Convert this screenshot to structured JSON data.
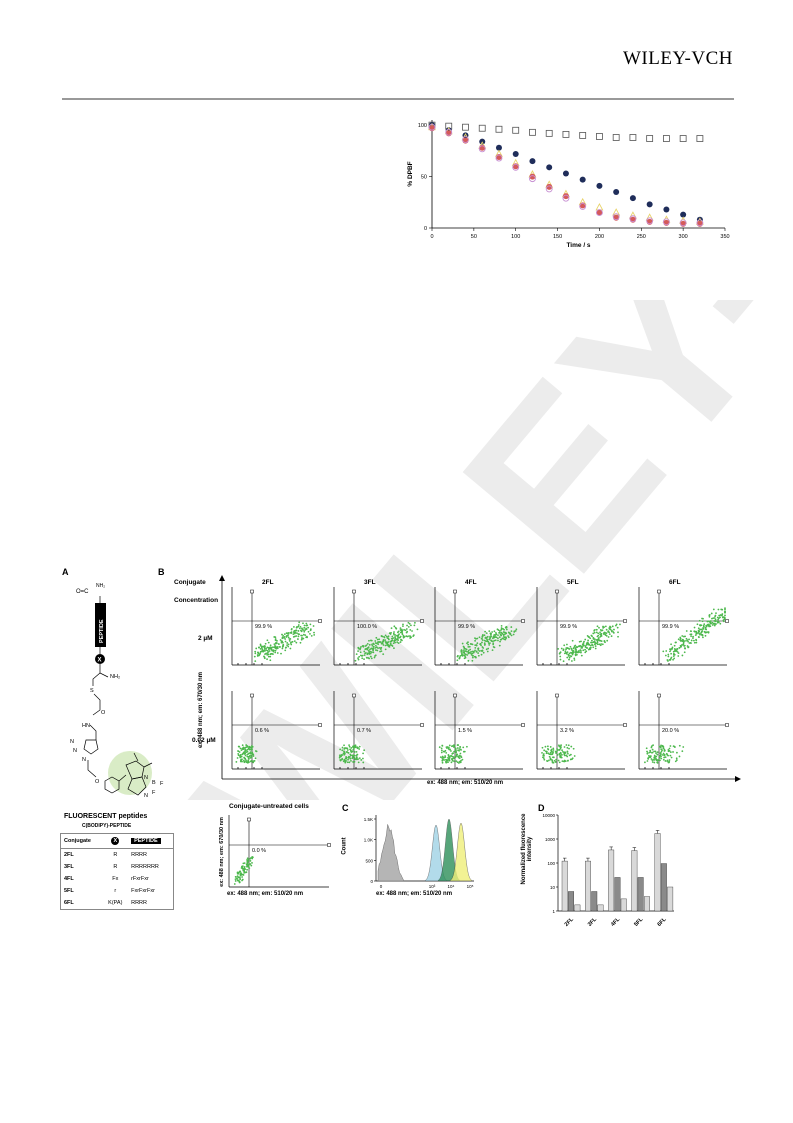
{
  "header": {
    "logo": "WILEY-VCH",
    "watermark": "WILEY-VCH"
  },
  "fig_top": {
    "chart_data": {
      "type": "scatter",
      "xlabel": "Time / s",
      "ylabel": "% DPBF",
      "xlim": [
        0,
        350
      ],
      "ylim": [
        0,
        105
      ],
      "xticks": [
        "0",
        "50",
        "100",
        "150",
        "200",
        "250",
        "300",
        "350"
      ],
      "yticks": [
        "0",
        "50",
        "100"
      ],
      "grid": false,
      "series": [
        {
          "color": "#555555",
          "marker": "open-square",
          "x": [
            0,
            20,
            40,
            60,
            80,
            100,
            120,
            140,
            160,
            180,
            200,
            220,
            240,
            260,
            280,
            300,
            320
          ],
          "y": [
            100,
            99,
            98,
            97,
            96,
            95,
            93,
            92,
            91,
            90,
            89,
            88,
            88,
            87,
            87,
            87,
            87
          ]
        },
        {
          "color": "#1f2d5a",
          "marker": "filled-circle",
          "x": [
            0,
            20,
            40,
            60,
            80,
            100,
            120,
            140,
            160,
            180,
            200,
            220,
            240,
            260,
            280,
            300,
            320
          ],
          "y": [
            100,
            95,
            90,
            84,
            78,
            72,
            65,
            59,
            53,
            47,
            41,
            35,
            29,
            23,
            18,
            13,
            8
          ]
        },
        {
          "color": "#e8d36a",
          "marker": "open-triangle",
          "x": [
            0,
            20,
            40,
            60,
            80,
            100,
            120,
            140,
            160,
            180,
            200,
            220,
            240,
            260,
            280,
            300,
            320
          ],
          "y": [
            98,
            94,
            88,
            80,
            72,
            63,
            52,
            42,
            33,
            25,
            20,
            15,
            12,
            10,
            8,
            7,
            6
          ]
        },
        {
          "color": "#d55a5a",
          "marker": "filled-circle",
          "x": [
            0,
            20,
            40,
            60,
            80,
            100,
            120,
            140,
            160,
            180,
            200,
            220,
            240,
            260,
            280,
            300,
            320
          ],
          "y": [
            97,
            92,
            85,
            78,
            69,
            60,
            50,
            40,
            31,
            22,
            15,
            10,
            8,
            6,
            5,
            4,
            4
          ]
        },
        {
          "color": "#c78fd2",
          "marker": "open-circle",
          "x": [
            0,
            20,
            40,
            60,
            80,
            100,
            120,
            140,
            160,
            180,
            200,
            220,
            240,
            260,
            280,
            300,
            320
          ],
          "y": [
            98,
            93,
            86,
            77,
            68,
            59,
            48,
            38,
            29,
            21,
            15,
            11,
            9,
            7,
            6,
            5,
            5
          ]
        }
      ]
    }
  },
  "figA": {
    "panel_label": "A",
    "structure_labels": [
      "O=C",
      "NH₂",
      "PEPTIDE",
      "X",
      "NH₂",
      "S",
      "O",
      "HN",
      "N",
      "N",
      "N",
      "O",
      "N",
      "B",
      "F",
      "F",
      "N"
    ],
    "title": "FLUORESCENT peptides",
    "subtitle": "C(BODIPY)-PEPTIDE",
    "table_head": [
      "Conjugate",
      "X",
      "PEPTIDE"
    ],
    "rows": [
      [
        "2FL",
        "R",
        "RRRR"
      ],
      [
        "3FL",
        "R",
        "RRRRRRR"
      ],
      [
        "4FL",
        "Fx",
        "rFxrFxr"
      ],
      [
        "5FL",
        "r",
        "FxrFxrFxr"
      ],
      [
        "6FL",
        "K(PA)",
        "RRRR"
      ]
    ]
  },
  "figB": {
    "panel_label": "B",
    "col_header": "Conjugate",
    "row_header": "Concentration",
    "columns": [
      "2FL",
      "3FL",
      "4FL",
      "5FL",
      "6FL"
    ],
    "rows": [
      "2 µM",
      "0.02 µM"
    ],
    "percent_top": [
      "99.9 %",
      "100.0 %",
      "99.9 %",
      "99.9 %",
      "99.9 %"
    ],
    "percent_bottom": [
      "0.6 %",
      "0.7 %",
      "1.5 %",
      "3.2 %",
      "20.0 %"
    ],
    "ylabel": "ex: 488 nm; em: 670/30 nm",
    "xlabel": "ex: 488 nm; em: 510/20 nm",
    "untreated_title": "Conjugate-untreated cells",
    "untreated_percent": "0.0 %",
    "untreated_ylabel": "ex: 488 nm; em: 670/30 nm",
    "untreated_xlabel": "ex: 488 nm; em: 510/20 nm"
  },
  "figC": {
    "panel_label": "C",
    "ylabel": "Count",
    "xlabel": "ex: 488 nm; em: 510/20 nm",
    "yticks": [
      "0",
      "500",
      "1.0K",
      "1.5K"
    ],
    "xticks": [
      "0",
      "10³",
      "10⁴",
      "10⁵"
    ]
  },
  "figD": {
    "panel_label": "D",
    "chart_data": {
      "type": "bar",
      "ylabel": "Normalized fluorescence intensity",
      "yscale": "log",
      "yticks": [
        "1",
        "10",
        "100",
        "1000",
        "10000"
      ],
      "categories": [
        "2FL",
        "3FL",
        "4FL",
        "5FL",
        "6FL"
      ],
      "series": [
        {
          "color": "#d9d9d9",
          "values": [
            120,
            120,
            350,
            330,
            1700
          ]
        },
        {
          "color": "#8a8a8a",
          "values": [
            6.5,
            6.5,
            25,
            25,
            95
          ]
        },
        {
          "color": "#d9d9d9",
          "values": [
            1.8,
            1.8,
            3.2,
            4,
            10
          ]
        }
      ]
    }
  }
}
